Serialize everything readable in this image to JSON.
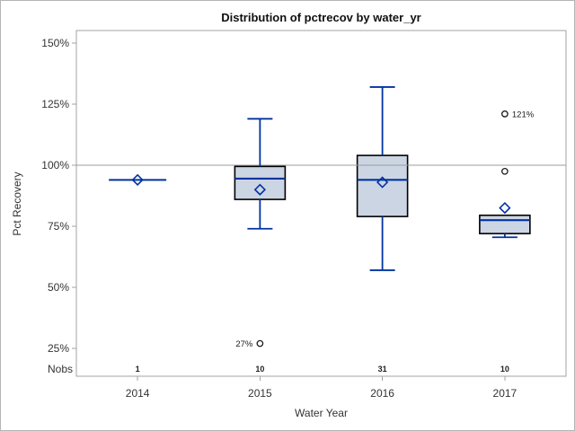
{
  "colors": {
    "box_fill": "#ccd5e3",
    "box_border": "#000000",
    "line_blue": "#0033a0",
    "axis_gray": "#a3a3a3",
    "ref_line_gray": "#9b9b9b",
    "axis_text": "#333333",
    "outlier": "#1a1a1a"
  },
  "chart_data": {
    "type": "boxplot",
    "title": "Distribution of pctrecov by water_yr",
    "xlabel": "Water Year",
    "ylabel": "Pct Recovery",
    "nobs_header": "Nobs",
    "reference_line": 100,
    "yticks": [
      {
        "v": 150,
        "t": "150%"
      },
      {
        "v": 125,
        "t": "125%"
      },
      {
        "v": 100,
        "t": "100%"
      },
      {
        "v": 75,
        "t": "75%"
      },
      {
        "v": 50,
        "t": "50%"
      },
      {
        "v": 25,
        "t": "25%"
      }
    ],
    "categories": [
      "2014",
      "2015",
      "2016",
      "2017"
    ],
    "groups": [
      {
        "category": "2014",
        "nobs": "1",
        "whisker_low": 94,
        "q1": 94,
        "median": 94,
        "q3": 94,
        "whisker_high": 94,
        "mean": 94,
        "outliers": []
      },
      {
        "category": "2015",
        "nobs": "10",
        "whisker_low": 74,
        "q1": 86,
        "median": 94.5,
        "q3": 99.5,
        "whisker_high": 119,
        "mean": 90,
        "outliers": [
          {
            "value": 27,
            "label": "27%",
            "label_side": "left"
          }
        ]
      },
      {
        "category": "2016",
        "nobs": "31",
        "whisker_low": 57,
        "q1": 79,
        "median": 94,
        "q3": 104,
        "whisker_high": 132,
        "mean": 93,
        "outliers": []
      },
      {
        "category": "2017",
        "nobs": "10",
        "whisker_low": 70.5,
        "q1": 72,
        "median": 77.5,
        "q3": 79.5,
        "whisker_high": 79.5,
        "mean": 82.5,
        "outliers": [
          {
            "value": 97.5,
            "label": "",
            "label_side": "right"
          },
          {
            "value": 121,
            "label": "121%",
            "label_side": "right"
          }
        ]
      }
    ]
  }
}
